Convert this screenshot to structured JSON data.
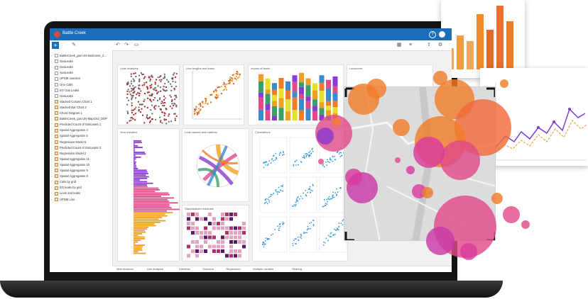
{
  "app": {
    "title": "Battle Creek"
  },
  "toolbar": {
    "add_label": "+",
    "help_label": "?",
    "icons": [
      "edit-icon",
      "undo-icon",
      "redo-icon",
      "layout-icon",
      "grid-icon",
      "share-icon",
      "settings-icon"
    ]
  },
  "sidebar": {
    "items": [
      {
        "label": "BattleCreek_gas UN-landcover_2...",
        "kind": "dataset"
      },
      {
        "label": "GasLeaks",
        "kind": "dataset"
      },
      {
        "label": "GasLeaks",
        "kind": "dataset"
      },
      {
        "label": "GasLeaks",
        "kind": "dataset"
      },
      {
        "label": "UPDM Junction",
        "kind": "dataset"
      },
      {
        "label": "One Calls",
        "kind": "dataset"
      },
      {
        "label": "EO Gas Leaks",
        "kind": "dataset"
      },
      {
        "label": "GasLeaks",
        "kind": "dataset"
      },
      {
        "label": "Stacked Column Chart 1",
        "kind": "viz"
      },
      {
        "label": "Stacked Bar Chart 2",
        "kind": "viz"
      },
      {
        "label": "Chord Diagram 1",
        "kind": "viz"
      },
      {
        "label": "BattleCreek_gas UN-MapGrid_DDP",
        "kind": "viz"
      },
      {
        "label": "Predicted Count of GasLeaks 1",
        "kind": "viz"
      },
      {
        "label": "Spatial Aggregation 4",
        "kind": "viz"
      },
      {
        "label": "Spatial Aggregation 5",
        "kind": "viz"
      },
      {
        "label": "Regression Model 5",
        "kind": "viz"
      },
      {
        "label": "Predicted Count of GasLeaks 3",
        "kind": "viz"
      },
      {
        "label": "Regression Model 2",
        "kind": "viz"
      },
      {
        "label": "Spatial Aggregation 11",
        "kind": "viz"
      },
      {
        "label": "Spatial Aggregation 10",
        "kind": "viz"
      },
      {
        "label": "Spatial Aggregation 9",
        "kind": "viz"
      },
      {
        "label": "Spatial Aggregation 8",
        "kind": "viz"
      },
      {
        "label": "Calls by grid",
        "kind": "viz"
      },
      {
        "label": "EO leaks by grid",
        "kind": "viz"
      },
      {
        "label": "Lines and leaks",
        "kind": "viz"
      },
      {
        "label": "UPDM Line",
        "kind": "viz"
      }
    ]
  },
  "cards": {
    "leak_locations": "Leak locations",
    "line_lengths": "Line lengths and leaks",
    "impact": "Impact of leaks",
    "landcover": "Landcover",
    "year_installed": "Year installed",
    "leak_causes": "Leak causes and material",
    "correlations": "Correlations",
    "std_residuals": "Standardized residuals"
  },
  "bottom_tabs": [
    "New features",
    "Link analysis",
    "Dateflow",
    "Scenario",
    "Regression",
    "Multiple variable",
    "Sharing"
  ],
  "colors": {
    "brand": "#1b6fb8",
    "accent_orange": "#f07c2a",
    "accent_purple": "#7a3ed6",
    "bubble_pink": "#d93a9e"
  }
}
